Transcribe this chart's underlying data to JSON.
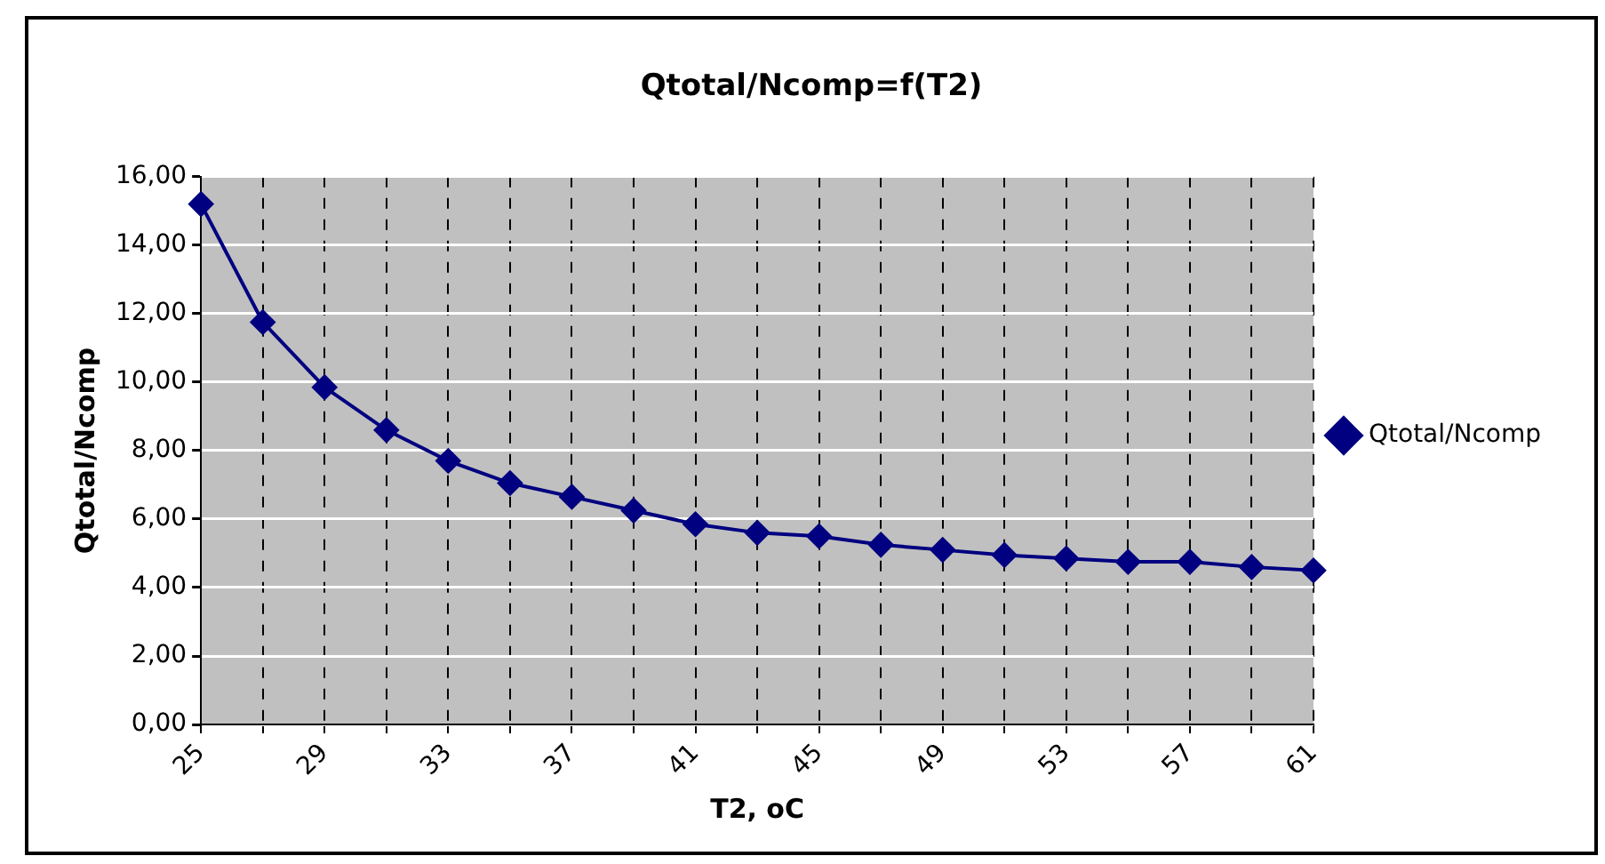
{
  "chart_data": {
    "type": "line",
    "title": "Qtotal/Ncomp=f(T2)",
    "xlabel": "T2, oC",
    "ylabel": "Qtotal/Ncomp",
    "categories": [
      "25",
      null,
      "29",
      null,
      "33",
      null,
      "37",
      null,
      "41",
      null,
      "45",
      null,
      "49",
      null,
      "53",
      null,
      "57",
      null,
      "61"
    ],
    "series": [
      {
        "name": "Qtotal/Ncomp",
        "color": "#000080",
        "values": [
          15.2,
          11.75,
          9.85,
          8.6,
          7.7,
          7.05,
          6.65,
          6.25,
          5.85,
          5.6,
          5.5,
          5.25,
          5.1,
          4.95,
          4.85,
          4.75,
          4.75,
          4.6,
          4.5
        ]
      }
    ],
    "ylim": [
      0,
      16
    ],
    "yticks": [
      {
        "value": 0,
        "label": "0,00"
      },
      {
        "value": 2,
        "label": "2,00"
      },
      {
        "value": 4,
        "label": "4,00"
      },
      {
        "value": 6,
        "label": "6,00"
      },
      {
        "value": 8,
        "label": "8,00"
      },
      {
        "value": 10,
        "label": "10,00"
      },
      {
        "value": 12,
        "label": "12,00"
      },
      {
        "value": 14,
        "label": "14,00"
      },
      {
        "value": 16,
        "label": "16,00"
      }
    ],
    "grid": true,
    "legend": "right",
    "marker": "diamond",
    "line_style": "solid"
  }
}
